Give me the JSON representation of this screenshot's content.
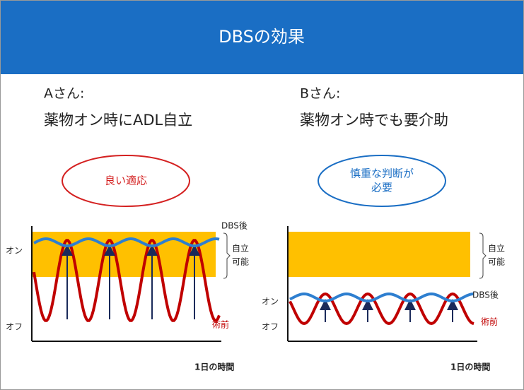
{
  "header": {
    "title": "DBSの効果"
  },
  "panels": [
    {
      "patient": "Aさん:",
      "status": "薬物オン時にADL自立",
      "assessment": [
        "良い適応"
      ],
      "on_label": "オン",
      "off_label": "オフ",
      "after_label": "DBS後",
      "before_label": "術前",
      "zone_label": [
        "自立",
        "可能"
      ],
      "x_axis_label": "1日の時間"
    },
    {
      "patient": "Bさん:",
      "status": "薬物オン時でも要介助",
      "assessment": [
        "慎重な判断が",
        "必要"
      ],
      "on_label": "オン",
      "off_label": "オフ",
      "after_label": "DBS後",
      "before_label": "術前",
      "zone_label": [
        "自立",
        "可能"
      ],
      "x_axis_label": "1日の時間"
    }
  ]
}
